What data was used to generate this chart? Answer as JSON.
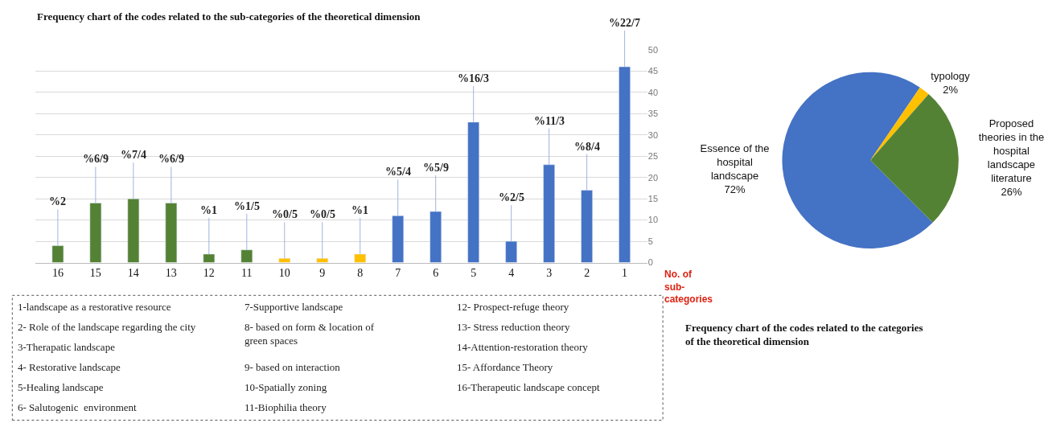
{
  "chart_data": [
    {
      "type": "bar",
      "title": "Frequency chart of the codes related to the sub-categories of the theoretical dimension",
      "xlabel": "No. of sub-categories",
      "categories": [
        "16",
        "15",
        "14",
        "13",
        "12",
        "11",
        "10",
        "9",
        "8",
        "7",
        "6",
        "5",
        "4",
        "3",
        "2",
        "1"
      ],
      "values": [
        4,
        14,
        15,
        14,
        2,
        3,
        1,
        1,
        2,
        11,
        12,
        33,
        5,
        23,
        17,
        46
      ],
      "colors": [
        "#548235",
        "#548235",
        "#548235",
        "#548235",
        "#548235",
        "#548235",
        "#ffc000",
        "#ffc000",
        "#ffc000",
        "#4472c4",
        "#4472c4",
        "#4472c4",
        "#4472c4",
        "#4472c4",
        "#4472c4",
        "#4472c4"
      ],
      "ylim": [
        0,
        50
      ],
      "yticks": [
        0,
        5,
        10,
        15,
        20,
        25,
        30,
        35,
        40,
        45,
        50
      ],
      "grid": "y",
      "annotations": [
        "1-landscape as a restorative resource",
        "2- Role of the landscape regarding the city",
        "3-Therapatic landscape",
        "4- Restorative landscape",
        "5-Healing landscape",
        "6- Salutogenic  environment",
        "7-Supportive landscape",
        "8- based on form & location of green spaces",
        "9- based on interaction",
        "10-Spatially zoning",
        "11-Biophilia theory",
        "12- Prospect-refuge theory",
        "13- Stress reduction theory",
        "14-Attention-restoration theory",
        "15- Affordance Theory",
        "16-Therapeutic landscape concept",
        {
          "text": "%2",
          "x": "16",
          "y": 4
        },
        {
          "text": "%6/9",
          "x": "15",
          "y": 14
        },
        {
          "text": "%7/4",
          "x": "14",
          "y": 15
        },
        {
          "text": "%6/9",
          "x": "13",
          "y": 14
        },
        {
          "text": "%1",
          "x": "12",
          "y": 2
        },
        {
          "text": "%1/5",
          "x": "11",
          "y": 3
        },
        {
          "text": "%0/5",
          "x": "10",
          "y": 1
        },
        {
          "text": "%0/5",
          "x": "9",
          "y": 1
        },
        {
          "text": "%1",
          "x": "8",
          "y": 2
        },
        {
          "text": "%5/4",
          "x": "7",
          "y": 11
        },
        {
          "text": "%5/9",
          "x": "6",
          "y": 12
        },
        {
          "text": "%16/3",
          "x": "5",
          "y": 33
        },
        {
          "text": "%2/5",
          "x": "4",
          "y": 5
        },
        {
          "text": "%11/3",
          "x": "3",
          "y": 23
        },
        {
          "text": "%8/4",
          "x": "2",
          "y": 17
        },
        {
          "text": "%22/7",
          "x": "1",
          "y": 46
        }
      ]
    },
    {
      "type": "pie",
      "title": "Frequency chart of the codes related to the categories of the theoretical dimension",
      "categories": [
        "Essence of the hospital landscape",
        "typology",
        "Proposed theories in the hospital landscape literature"
      ],
      "values": [
        72,
        2,
        26
      ],
      "colors": [
        "#4472c4",
        "#ffc000",
        "#548235"
      ],
      "value_labels": [
        "72%",
        "2%",
        "26%"
      ]
    }
  ]
}
